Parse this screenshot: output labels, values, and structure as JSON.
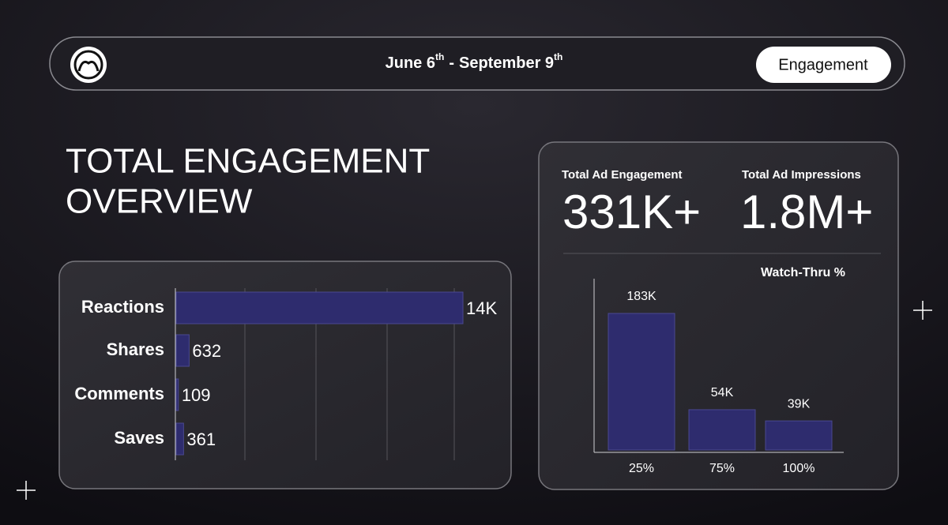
{
  "header": {
    "date_range": {
      "start": "June 6",
      "start_suffix": "th",
      "separator": "-",
      "end": "September 9",
      "end_suffix": "th"
    },
    "button": "Engagement"
  },
  "title_lines": [
    "TOTAL ENGAGEMENT",
    "OVERVIEW"
  ],
  "stats": [
    {
      "label": "Total Ad Engagement",
      "value": "331K+"
    },
    {
      "label": "Total Ad Impressions",
      "value": "1.8M+"
    }
  ],
  "chart_data": [
    {
      "type": "hbar",
      "categories": [
        "Reactions",
        "Shares",
        "Comments",
        "Saves"
      ],
      "values": [
        14000,
        632,
        109,
        361
      ],
      "value_labels": [
        "14K",
        "632",
        "109",
        "361"
      ],
      "color": "#2e2c6e"
    },
    {
      "type": "bar",
      "title": "Watch-Thru %",
      "categories": [
        "25%",
        "75%",
        "100%"
      ],
      "values": [
        183000,
        54000,
        39000
      ],
      "value_labels": [
        "183K",
        "54K",
        "39K"
      ],
      "color": "#2e2c6e"
    }
  ]
}
